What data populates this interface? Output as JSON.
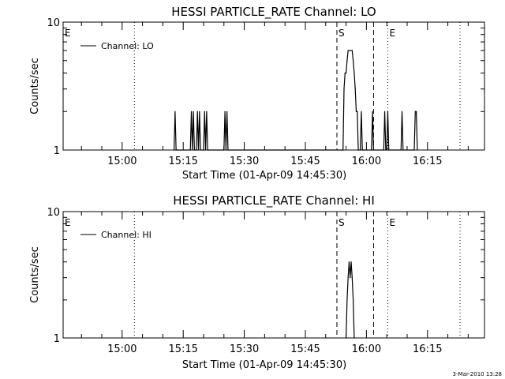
{
  "chart_data": [
    {
      "type": "line",
      "title": "HESSI PARTICLE_RATE Channel: LO",
      "xlabel": "Start Time (01-Apr-09 14:45:30)",
      "ylabel": "Counts/sec",
      "y_scale": "log",
      "ylim": [
        1,
        10
      ],
      "y_ticks": [
        {
          "v": 1,
          "label": "1"
        },
        {
          "v": 10,
          "label": "10"
        }
      ],
      "xlim": [
        "14:45:30",
        "16:29:00"
      ],
      "x_ticks": [
        "15:00",
        "15:15",
        "15:30",
        "15:45",
        "16:00",
        "16:15"
      ],
      "legend": {
        "label": "Channel: LO",
        "position": "top-left"
      },
      "markers": [
        {
          "time": "14:45:30",
          "label": "E",
          "style": "dotted"
        },
        {
          "time": "15:03:00",
          "label": "",
          "style": "dotted"
        },
        {
          "time": "15:52:45",
          "label": "S",
          "style": "dashed"
        },
        {
          "time": "16:01:45",
          "label": "",
          "style": "dashed"
        },
        {
          "time": "16:05:15",
          "label": "E",
          "style": "dotted"
        },
        {
          "time": "16:23:00",
          "label": "",
          "style": "dotted"
        }
      ],
      "series": [
        {
          "name": "Channel: LO",
          "points": [
            [
              "15:12:45",
              1
            ],
            [
              "15:13:00",
              2
            ],
            [
              "15:13:15",
              1
            ],
            [
              "15:16:45",
              1
            ],
            [
              "15:17:00",
              2
            ],
            [
              "15:17:15",
              1
            ],
            [
              "15:17:30",
              2
            ],
            [
              "15:17:45",
              1
            ],
            [
              "15:18:15",
              1
            ],
            [
              "15:18:30",
              2
            ],
            [
              "15:18:45",
              1
            ],
            [
              "15:19:00",
              2
            ],
            [
              "15:19:15",
              1
            ],
            [
              "15:20:00",
              1
            ],
            [
              "15:20:15",
              2
            ],
            [
              "15:20:30",
              1
            ],
            [
              "15:20:45",
              2
            ],
            [
              "15:21:00",
              1
            ],
            [
              "15:25:00",
              1
            ],
            [
              "15:25:15",
              2
            ],
            [
              "15:25:30",
              1
            ],
            [
              "15:25:45",
              2
            ],
            [
              "15:26:00",
              1
            ],
            [
              "15:54:15",
              1
            ],
            [
              "15:54:30",
              3
            ],
            [
              "15:54:45",
              4
            ],
            [
              "15:55:00",
              4
            ],
            [
              "15:55:15",
              5
            ],
            [
              "15:55:30",
              6
            ],
            [
              "15:55:45",
              6
            ],
            [
              "15:56:00",
              6
            ],
            [
              "15:56:15",
              6
            ],
            [
              "15:56:30",
              6
            ],
            [
              "15:56:45",
              5
            ],
            [
              "15:57:00",
              4
            ],
            [
              "15:57:15",
              3
            ],
            [
              "15:57:30",
              2
            ],
            [
              "15:57:45",
              2
            ],
            [
              "15:58:00",
              1
            ],
            [
              "15:58:30",
              1
            ],
            [
              "15:58:45",
              2
            ],
            [
              "15:59:00",
              1
            ],
            [
              "16:01:15",
              1
            ],
            [
              "16:01:30",
              2
            ],
            [
              "16:01:45",
              1
            ],
            [
              "16:04:15",
              1
            ],
            [
              "16:04:30",
              2
            ],
            [
              "16:04:45",
              1
            ],
            [
              "16:05:00",
              1
            ],
            [
              "16:05:15",
              2
            ],
            [
              "16:05:30",
              1
            ],
            [
              "16:08:30",
              1
            ],
            [
              "16:08:45",
              2
            ],
            [
              "16:09:00",
              1
            ],
            [
              "16:11:45",
              1
            ],
            [
              "16:12:00",
              2
            ],
            [
              "16:12:15",
              2
            ],
            [
              "16:12:30",
              1
            ]
          ]
        }
      ]
    },
    {
      "type": "line",
      "title": "HESSI PARTICLE_RATE Channel: HI",
      "xlabel": "Start Time (01-Apr-09 14:45:30)",
      "ylabel": "Counts/sec",
      "y_scale": "log",
      "ylim": [
        1,
        10
      ],
      "y_ticks": [
        {
          "v": 1,
          "label": "1"
        },
        {
          "v": 10,
          "label": "10"
        }
      ],
      "xlim": [
        "14:45:30",
        "16:29:00"
      ],
      "x_ticks": [
        "15:00",
        "15:15",
        "15:30",
        "15:45",
        "16:00",
        "16:15"
      ],
      "legend": {
        "label": "Channel: HI",
        "position": "top-left"
      },
      "markers": [
        {
          "time": "14:45:30",
          "label": "E",
          "style": "dotted"
        },
        {
          "time": "15:03:00",
          "label": "",
          "style": "dotted"
        },
        {
          "time": "15:52:45",
          "label": "S",
          "style": "dashed"
        },
        {
          "time": "16:01:45",
          "label": "",
          "style": "dashed"
        },
        {
          "time": "16:05:15",
          "label": "E",
          "style": "dotted"
        },
        {
          "time": "16:23:00",
          "label": "",
          "style": "dotted"
        }
      ],
      "series": [
        {
          "name": "Channel: HI",
          "points": [
            [
              "15:55:00",
              1
            ],
            [
              "15:55:15",
              2
            ],
            [
              "15:55:30",
              3
            ],
            [
              "15:55:45",
              4
            ],
            [
              "15:56:00",
              3
            ],
            [
              "15:56:15",
              4
            ],
            [
              "15:56:30",
              3
            ],
            [
              "15:56:45",
              2
            ],
            [
              "15:57:00",
              1
            ]
          ]
        }
      ]
    }
  ],
  "footer": {
    "timestamp": "3-Mar-2010 13:28"
  }
}
